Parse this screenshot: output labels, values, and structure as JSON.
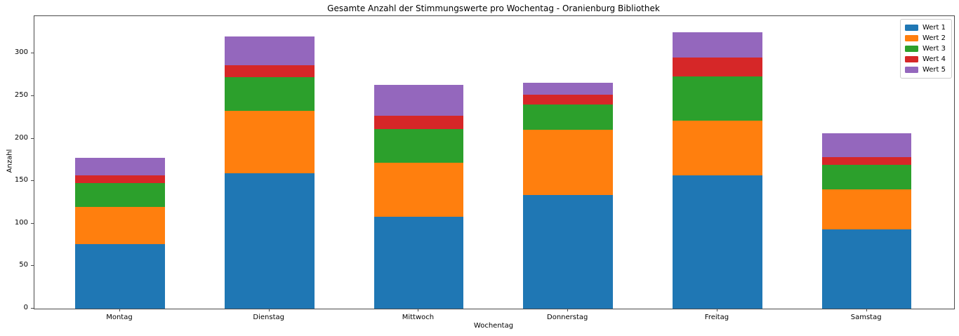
{
  "chart_data": {
    "type": "bar",
    "stacked": true,
    "title": "Gesamte Anzahl der Stimmungswerte pro Wochentag - Oranienburg Bibliothek",
    "xlabel": "Wochentag",
    "ylabel": "Anzahl",
    "categories": [
      "Montag",
      "Dienstag",
      "Mittwoch",
      "Donnerstag",
      "Freitag",
      "Samstag"
    ],
    "series": [
      {
        "name": "Wert 1",
        "color": "#1f77b4",
        "values": [
          76,
          159,
          108,
          134,
          157,
          93
        ]
      },
      {
        "name": "Wert 2",
        "color": "#ff7f0e",
        "values": [
          44,
          74,
          64,
          76,
          64,
          47
        ]
      },
      {
        "name": "Wert 3",
        "color": "#2ca02c",
        "values": [
          28,
          39,
          39,
          30,
          52,
          29
        ]
      },
      {
        "name": "Wert 4",
        "color": "#d62728",
        "values": [
          9,
          14,
          16,
          12,
          22,
          9
        ]
      },
      {
        "name": "Wert 5",
        "color": "#9467bd",
        "values": [
          20,
          34,
          36,
          14,
          30,
          28
        ]
      }
    ],
    "totals": [
      177,
      320,
      263,
      266,
      325,
      206
    ],
    "ylim": [
      0,
      344
    ],
    "yticks": [
      0,
      50,
      100,
      150,
      200,
      250,
      300
    ],
    "grid": false,
    "legend_position": "upper right",
    "bar_width_fraction": 0.6
  }
}
